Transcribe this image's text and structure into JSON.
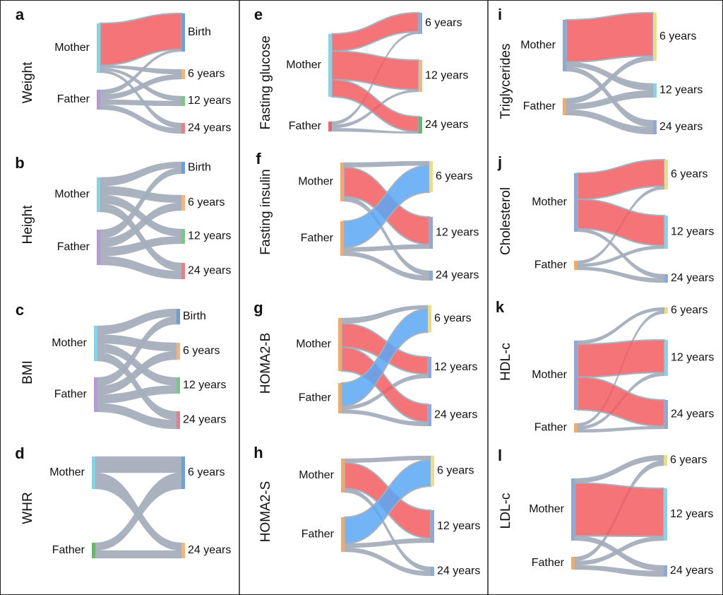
{
  "figure_colors": {
    "grey": "#a4aebb",
    "red": "#f25c5f",
    "blue": "#5aa7f6",
    "mother_bar": "#86d3e4",
    "father_bar": "#b59ad3",
    "birth_bar": "#6f9fd6",
    "six_bar": "#f2b67b",
    "twelve_bar": "#7cc68b",
    "twentyfour_bar": "#e3808c",
    "yellow_bar": "#e8dc8f",
    "cyan_bar": "#8bd2e6",
    "blue_bar": "#8fa8d4",
    "green_bar": "#69b66f",
    "red_bar": "#e06a78",
    "orange_bar": "#efaa6e",
    "border": "#222222"
  },
  "chart_data": [
    {
      "panel": "a",
      "type": "sankey",
      "trait": "Weight",
      "sources": [
        "Mother",
        "Father"
      ],
      "targets": [
        "Birth",
        "6 years",
        "12 years",
        "24 years"
      ],
      "links": [
        {
          "source": "Mother",
          "target": "Birth",
          "value": 50,
          "color": "red"
        },
        {
          "source": "Mother",
          "target": "6 years",
          "value": 3
        },
        {
          "source": "Mother",
          "target": "12 years",
          "value": 3
        },
        {
          "source": "Mother",
          "target": "24 years",
          "value": 3
        },
        {
          "source": "Father",
          "target": "Birth",
          "value": 3
        },
        {
          "source": "Father",
          "target": "6 years",
          "value": 3
        },
        {
          "source": "Father",
          "target": "12 years",
          "value": 3
        },
        {
          "source": "Father",
          "target": "24 years",
          "value": 3
        }
      ]
    },
    {
      "panel": "b",
      "type": "sankey",
      "trait": "Height",
      "sources": [
        "Mother",
        "Father"
      ],
      "targets": [
        "Birth",
        "6 years",
        "12 years",
        "24 years"
      ],
      "links": [
        {
          "source": "Mother",
          "target": "Birth",
          "value": 5
        },
        {
          "source": "Mother",
          "target": "6 years",
          "value": 5
        },
        {
          "source": "Mother",
          "target": "12 years",
          "value": 5
        },
        {
          "source": "Mother",
          "target": "24 years",
          "value": 5
        },
        {
          "source": "Father",
          "target": "Birth",
          "value": 5
        },
        {
          "source": "Father",
          "target": "6 years",
          "value": 5
        },
        {
          "source": "Father",
          "target": "12 years",
          "value": 5
        },
        {
          "source": "Father",
          "target": "24 years",
          "value": 5
        }
      ]
    },
    {
      "panel": "c",
      "type": "sankey",
      "trait": "BMI",
      "sources": [
        "Mother",
        "Father"
      ],
      "targets": [
        "Birth",
        "6 years",
        "12 years",
        "24 years"
      ],
      "links": [
        {
          "source": "Mother",
          "target": "Birth",
          "value": 5
        },
        {
          "source": "Mother",
          "target": "6 years",
          "value": 5
        },
        {
          "source": "Mother",
          "target": "12 years",
          "value": 5
        },
        {
          "source": "Mother",
          "target": "24 years",
          "value": 5
        },
        {
          "source": "Father",
          "target": "Birth",
          "value": 5
        },
        {
          "source": "Father",
          "target": "6 years",
          "value": 5
        },
        {
          "source": "Father",
          "target": "12 years",
          "value": 5
        },
        {
          "source": "Father",
          "target": "24 years",
          "value": 5
        }
      ]
    },
    {
      "panel": "d",
      "type": "sankey",
      "trait": "WHR",
      "sources": [
        "Mother",
        "Father"
      ],
      "targets": [
        "6 years",
        "24 years"
      ],
      "links": [
        {
          "source": "Mother",
          "target": "6 years",
          "value": 11
        },
        {
          "source": "Mother",
          "target": "24 years",
          "value": 11
        },
        {
          "source": "Father",
          "target": "6 years",
          "value": 11
        },
        {
          "source": "Father",
          "target": "24 years",
          "value": 11
        }
      ]
    },
    {
      "panel": "e",
      "type": "sankey",
      "trait": "Fasting glucose",
      "sources": [
        "Mother",
        "Father"
      ],
      "targets": [
        "6 years",
        "12 years",
        "24 years"
      ],
      "links": [
        {
          "source": "Mother",
          "target": "6 years",
          "value": 17,
          "color": "red"
        },
        {
          "source": "Mother",
          "target": "12 years",
          "value": 28,
          "color": "red"
        },
        {
          "source": "Mother",
          "target": "24 years",
          "value": 17,
          "color": "red"
        },
        {
          "source": "Father",
          "target": "6 years",
          "value": 2
        },
        {
          "source": "Father",
          "target": "12 years",
          "value": 2
        },
        {
          "source": "Father",
          "target": "24 years",
          "value": 2
        }
      ]
    },
    {
      "panel": "f",
      "type": "sankey",
      "trait": "Fasting insulin",
      "sources": [
        "Mother",
        "Father"
      ],
      "targets": [
        "6 years",
        "12 years",
        "24 years"
      ],
      "links": [
        {
          "source": "Mother",
          "target": "6 years",
          "value": 4
        },
        {
          "source": "Mother",
          "target": "12 years",
          "value": 25,
          "color": "red"
        },
        {
          "source": "Mother",
          "target": "24 years",
          "value": 4
        },
        {
          "source": "Father",
          "target": "6 years",
          "value": 25,
          "color": "blue"
        },
        {
          "source": "Father",
          "target": "12 years",
          "value": 4
        },
        {
          "source": "Father",
          "target": "24 years",
          "value": 4
        }
      ]
    },
    {
      "panel": "g",
      "type": "sankey",
      "trait": "HOMA2-B",
      "sources": [
        "Mother",
        "Father"
      ],
      "targets": [
        "6 years",
        "12 years",
        "24 years"
      ],
      "links": [
        {
          "source": "Mother",
          "target": "6 years",
          "value": 4
        },
        {
          "source": "Mother",
          "target": "12 years",
          "value": 17,
          "color": "red"
        },
        {
          "source": "Mother",
          "target": "24 years",
          "value": 17,
          "color": "red"
        },
        {
          "source": "Father",
          "target": "6 years",
          "value": 25,
          "color": "blue"
        },
        {
          "source": "Father",
          "target": "12 years",
          "value": 4
        },
        {
          "source": "Father",
          "target": "24 years",
          "value": 4
        }
      ]
    },
    {
      "panel": "h",
      "type": "sankey",
      "trait": "HOMA2-S",
      "sources": [
        "Mother",
        "Father"
      ],
      "targets": [
        "6 years",
        "12 years",
        "24 years"
      ],
      "links": [
        {
          "source": "Mother",
          "target": "6 years",
          "value": 4
        },
        {
          "source": "Mother",
          "target": "12 years",
          "value": 25,
          "color": "red"
        },
        {
          "source": "Mother",
          "target": "24 years",
          "value": 4
        },
        {
          "source": "Father",
          "target": "6 years",
          "value": 25,
          "color": "blue"
        },
        {
          "source": "Father",
          "target": "12 years",
          "value": 4
        },
        {
          "source": "Father",
          "target": "24 years",
          "value": 4
        }
      ]
    },
    {
      "panel": "i",
      "type": "sankey",
      "trait": "Triglycerides",
      "sources": [
        "Mother",
        "Father"
      ],
      "targets": [
        "6 years",
        "12 years",
        "24 years"
      ],
      "links": [
        {
          "source": "Mother",
          "target": "6 years",
          "value": 45,
          "color": "red"
        },
        {
          "source": "Mother",
          "target": "12 years",
          "value": 5
        },
        {
          "source": "Mother",
          "target": "24 years",
          "value": 5
        },
        {
          "source": "Father",
          "target": "6 years",
          "value": 5
        },
        {
          "source": "Father",
          "target": "12 years",
          "value": 5
        },
        {
          "source": "Father",
          "target": "24 years",
          "value": 5
        }
      ]
    },
    {
      "panel": "j",
      "type": "sankey",
      "trait": "Cholesterol",
      "sources": [
        "Mother",
        "Father"
      ],
      "targets": [
        "6 years",
        "12 years",
        "24 years"
      ],
      "links": [
        {
          "source": "Mother",
          "target": "6 years",
          "value": 25,
          "color": "red"
        },
        {
          "source": "Mother",
          "target": "12 years",
          "value": 28,
          "color": "red"
        },
        {
          "source": "Mother",
          "target": "24 years",
          "value": 3
        },
        {
          "source": "Father",
          "target": "6 years",
          "value": 3
        },
        {
          "source": "Father",
          "target": "12 years",
          "value": 3
        },
        {
          "source": "Father",
          "target": "24 years",
          "value": 3
        }
      ]
    },
    {
      "panel": "k",
      "type": "sankey",
      "trait": "HDL-c",
      "sources": [
        "Mother",
        "Father"
      ],
      "targets": [
        "6 years",
        "12 years",
        "24 years"
      ],
      "links": [
        {
          "source": "Mother",
          "target": "6 years",
          "value": 3
        },
        {
          "source": "Mother",
          "target": "12 years",
          "value": 28,
          "color": "red"
        },
        {
          "source": "Mother",
          "target": "24 years",
          "value": 28,
          "color": "red"
        },
        {
          "source": "Father",
          "target": "6 years",
          "value": 3
        },
        {
          "source": "Father",
          "target": "12 years",
          "value": 3
        },
        {
          "source": "Father",
          "target": "24 years",
          "value": 3
        }
      ]
    },
    {
      "panel": "l",
      "type": "sankey",
      "trait": "LDL-c",
      "sources": [
        "Mother",
        "Father"
      ],
      "targets": [
        "6 years",
        "12 years",
        "24 years"
      ],
      "links": [
        {
          "source": "Mother",
          "target": "6 years",
          "value": 4
        },
        {
          "source": "Mother",
          "target": "12 years",
          "value": 45,
          "color": "red"
        },
        {
          "source": "Mother",
          "target": "24 years",
          "value": 4
        },
        {
          "source": "Father",
          "target": "6 years",
          "value": 4
        },
        {
          "source": "Father",
          "target": "12 years",
          "value": 4
        },
        {
          "source": "Father",
          "target": "24 years",
          "value": 4
        }
      ]
    }
  ]
}
